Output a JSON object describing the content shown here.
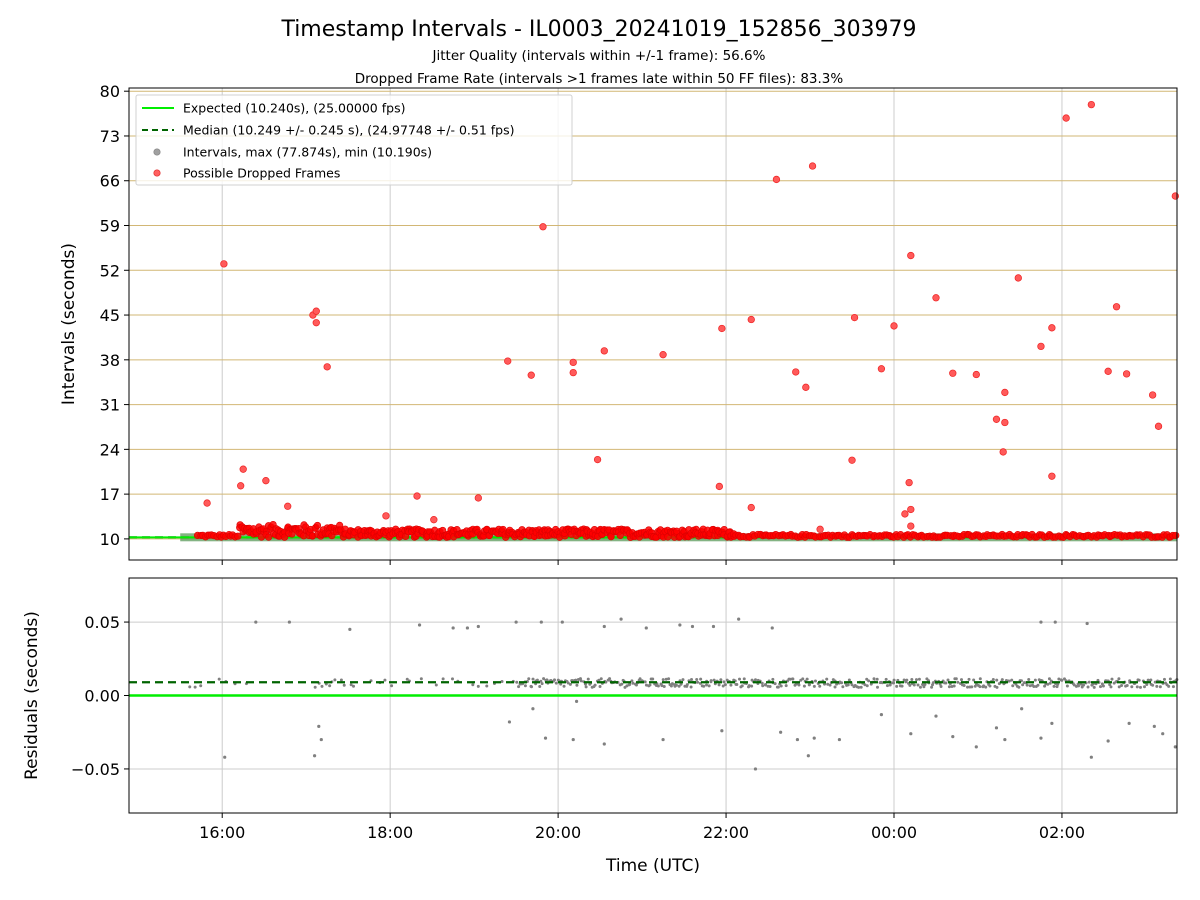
{
  "chart_data": {
    "title": "Timestamp Intervals - IL0003_20241019_152856_303979",
    "subtitle_1": "Jitter Quality (intervals within +/-1 frame): 56.6%",
    "subtitle_2": "Dropped Frame Rate (intervals >1 frames late within 50 FF files): 83.3%",
    "xlabel": "Time (UTC)",
    "x_ticks": [
      "16:00",
      "18:00",
      "20:00",
      "22:00",
      "00:00",
      "02:00"
    ],
    "x_range_hours": [
      14.89,
      27.37
    ],
    "colors": {
      "expected": "#00ee00",
      "median": "#006400",
      "interval": "#808080",
      "dropped": "#ff0000",
      "hgrid_top": "#d2b775",
      "grid": "#cccccc"
    },
    "top": {
      "type": "scatter",
      "ylabel": "Intervals (seconds)",
      "ylim": [
        6.7,
        80.5
      ],
      "y_ticks": [
        "10",
        "17",
        "24",
        "31",
        "38",
        "45",
        "52",
        "59",
        "66",
        "73",
        "80"
      ],
      "expected": 10.24,
      "median": 10.249,
      "legend": {
        "placement": "upper-left",
        "entries": [
          {
            "label": "Expected (10.240s), (25.00000 fps)",
            "style": "solid-line",
            "color": "#00ee00"
          },
          {
            "label": "Median (10.249 +/- 0.245 s), (24.97748 +/- 0.51 fps)",
            "style": "dashed-line",
            "color": "#006400"
          },
          {
            "label": "Intervals, max (77.874s), min (10.190s)",
            "style": "marker",
            "color": "#a0a0a0"
          },
          {
            "label": "Possible Dropped Frames",
            "style": "marker",
            "color": "#ff5050"
          }
        ]
      },
      "dropped_points": [
        [
          15.82,
          15.6
        ],
        [
          16.02,
          53.0
        ],
        [
          16.22,
          18.3
        ],
        [
          16.25,
          20.9
        ],
        [
          16.52,
          19.1
        ],
        [
          16.78,
          15.1
        ],
        [
          17.08,
          45.0
        ],
        [
          17.12,
          45.6
        ],
        [
          17.12,
          43.8
        ],
        [
          17.25,
          36.9
        ],
        [
          17.95,
          13.6
        ],
        [
          18.32,
          16.7
        ],
        [
          18.52,
          13.0
        ],
        [
          19.05,
          16.4
        ],
        [
          19.4,
          37.8
        ],
        [
          19.68,
          35.6
        ],
        [
          19.82,
          58.8
        ],
        [
          20.18,
          37.6
        ],
        [
          20.18,
          36.0
        ],
        [
          20.47,
          22.4
        ],
        [
          20.55,
          39.4
        ],
        [
          21.25,
          38.8
        ],
        [
          21.92,
          18.2
        ],
        [
          21.95,
          42.9
        ],
        [
          22.3,
          44.3
        ],
        [
          22.3,
          14.9
        ],
        [
          22.6,
          66.2
        ],
        [
          22.83,
          36.1
        ],
        [
          22.95,
          33.7
        ],
        [
          23.03,
          68.3
        ],
        [
          23.12,
          11.5
        ],
        [
          23.5,
          22.3
        ],
        [
          23.53,
          44.6
        ],
        [
          23.85,
          36.6
        ],
        [
          24.0,
          43.3
        ],
        [
          24.13,
          13.9
        ],
        [
          24.18,
          18.8
        ],
        [
          24.2,
          54.3
        ],
        [
          24.2,
          14.6
        ],
        [
          24.2,
          12.0
        ],
        [
          24.5,
          47.7
        ],
        [
          24.7,
          35.9
        ],
        [
          24.98,
          35.7
        ],
        [
          25.22,
          28.7
        ],
        [
          25.3,
          23.6
        ],
        [
          25.32,
          32.9
        ],
        [
          25.32,
          28.2
        ],
        [
          25.48,
          50.8
        ],
        [
          25.75,
          40.1
        ],
        [
          25.88,
          43.0
        ],
        [
          25.88,
          19.8
        ],
        [
          26.05,
          75.8
        ],
        [
          26.35,
          77.9
        ],
        [
          26.55,
          36.2
        ],
        [
          26.65,
          46.3
        ],
        [
          26.77,
          35.8
        ],
        [
          27.08,
          32.5
        ],
        [
          27.15,
          27.6
        ],
        [
          27.35,
          63.6
        ]
      ]
    },
    "bottom": {
      "type": "scatter",
      "ylabel": "Residuals (seconds)",
      "ylim": [
        -0.08,
        0.08
      ],
      "y_ticks": [
        "−0.05",
        "0.00",
        "0.05"
      ],
      "expected_residual": 0.0,
      "median_residual": 0.009,
      "outlier_points": [
        [
          16.03,
          -0.042
        ],
        [
          16.4,
          0.05
        ],
        [
          16.8,
          0.05
        ],
        [
          17.1,
          -0.041
        ],
        [
          17.15,
          -0.021
        ],
        [
          17.18,
          -0.03
        ],
        [
          17.52,
          0.045
        ],
        [
          18.35,
          0.048
        ],
        [
          18.75,
          0.046
        ],
        [
          18.92,
          0.046
        ],
        [
          19.05,
          0.047
        ],
        [
          19.42,
          -0.018
        ],
        [
          19.5,
          0.05
        ],
        [
          19.7,
          -0.009
        ],
        [
          19.8,
          0.05
        ],
        [
          19.85,
          -0.029
        ],
        [
          20.05,
          0.05
        ],
        [
          20.18,
          -0.03
        ],
        [
          20.22,
          -0.004
        ],
        [
          20.55,
          -0.033
        ],
        [
          20.55,
          0.047
        ],
        [
          20.75,
          0.052
        ],
        [
          21.05,
          0.046
        ],
        [
          21.25,
          -0.03
        ],
        [
          21.45,
          0.048
        ],
        [
          21.6,
          0.047
        ],
        [
          21.85,
          0.047
        ],
        [
          21.95,
          -0.024
        ],
        [
          22.15,
          0.052
        ],
        [
          22.35,
          -0.05
        ],
        [
          22.55,
          0.046
        ],
        [
          22.65,
          -0.025
        ],
        [
          22.85,
          -0.03
        ],
        [
          22.98,
          -0.041
        ],
        [
          23.05,
          -0.029
        ],
        [
          23.35,
          -0.03
        ],
        [
          23.85,
          -0.013
        ],
        [
          24.2,
          -0.026
        ],
        [
          24.5,
          -0.014
        ],
        [
          24.7,
          -0.028
        ],
        [
          24.98,
          -0.035
        ],
        [
          25.22,
          -0.022
        ],
        [
          25.32,
          -0.03
        ],
        [
          25.52,
          -0.009
        ],
        [
          25.75,
          -0.029
        ],
        [
          25.88,
          -0.019
        ],
        [
          25.75,
          0.05
        ],
        [
          25.92,
          0.05
        ],
        [
          26.3,
          0.049
        ],
        [
          26.35,
          -0.042
        ],
        [
          26.55,
          -0.031
        ],
        [
          26.8,
          -0.019
        ],
        [
          27.1,
          -0.021
        ],
        [
          27.2,
          -0.026
        ],
        [
          27.35,
          -0.035
        ]
      ]
    }
  }
}
